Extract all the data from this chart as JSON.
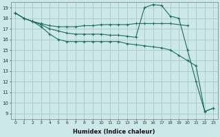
{
  "xlabel": "Humidex (Indice chaleur)",
  "bg_color": "#cce8e8",
  "grid_color": "#aacccc",
  "line_color": "#1a6b60",
  "xlim": [
    -0.5,
    23.5
  ],
  "ylim": [
    8.5,
    19.5
  ],
  "xticks": [
    0,
    1,
    2,
    3,
    4,
    5,
    6,
    7,
    8,
    9,
    10,
    11,
    12,
    13,
    14,
    15,
    16,
    17,
    18,
    19,
    20,
    21,
    22,
    23
  ],
  "yticks": [
    9,
    10,
    11,
    12,
    13,
    14,
    15,
    16,
    17,
    18,
    19
  ],
  "line1_x": [
    0,
    1,
    2,
    3,
    4,
    5,
    6,
    7,
    8,
    9,
    10,
    11,
    12,
    13,
    14,
    15,
    16,
    17,
    18,
    20
  ],
  "line1_y": [
    18.5,
    18.0,
    17.7,
    17.5,
    17.3,
    17.2,
    17.2,
    17.2,
    17.3,
    17.3,
    17.4,
    17.4,
    17.4,
    17.4,
    17.5,
    17.5,
    17.5,
    17.5,
    17.5,
    17.3
  ],
  "line2_x": [
    0,
    1,
    2,
    3,
    4,
    5,
    6,
    7,
    8,
    9,
    10,
    11,
    12,
    13,
    14,
    15,
    16,
    17,
    18,
    19,
    20,
    21,
    22,
    23
  ],
  "line2_y": [
    18.5,
    18.0,
    17.7,
    17.4,
    17.0,
    16.8,
    16.6,
    16.5,
    16.5,
    16.5,
    16.5,
    16.4,
    16.4,
    16.3,
    16.2,
    19.0,
    19.3,
    19.2,
    18.2,
    18.0,
    15.0,
    12.0,
    9.2,
    9.5
  ],
  "line3_x": [
    0,
    1,
    2,
    3,
    4,
    5,
    6,
    7,
    8,
    9,
    10,
    11,
    12,
    13,
    14,
    15,
    16,
    17,
    18,
    19,
    20,
    21,
    22,
    23
  ],
  "line3_y": [
    18.5,
    18.0,
    17.7,
    17.2,
    16.5,
    16.0,
    15.8,
    15.8,
    15.8,
    15.8,
    15.8,
    15.8,
    15.8,
    15.6,
    15.5,
    15.4,
    15.3,
    15.2,
    15.0,
    14.5,
    14.0,
    13.5,
    9.2,
    9.5
  ]
}
